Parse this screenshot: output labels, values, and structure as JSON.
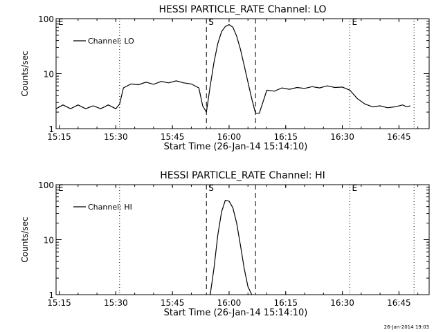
{
  "footer": {
    "timestamp": "26-Jan-2014 19:03"
  },
  "chart_data": [
    {
      "type": "line",
      "title": "HESSI PARTICLE_RATE Channel: LO",
      "xlabel": "Start Time (26-Jan-14 15:14:10)",
      "ylabel": "Counts/sec",
      "x_unit": "HH:MM",
      "xlim": [
        "15:14:10",
        "16:53"
      ],
      "ylim": [
        1,
        100
      ],
      "y_scale": "log",
      "x_ticks": [
        "15:15",
        "15:30",
        "15:45",
        "16:00",
        "16:15",
        "16:30",
        "16:45"
      ],
      "y_ticks": [
        "1",
        "10",
        "100"
      ],
      "legend": {
        "label": "Channel: LO",
        "position": "top-left"
      },
      "markers": [
        {
          "label": "E",
          "time": "15:14:10",
          "style": "edge"
        },
        {
          "label": "",
          "time": "15:31",
          "style": "dotted"
        },
        {
          "label": "S",
          "time": "15:54",
          "style": "dashed"
        },
        {
          "label": "",
          "time": "16:07",
          "style": "dashed"
        },
        {
          "label": "E",
          "time": "16:32",
          "style": "dotted"
        },
        {
          "label": "",
          "time": "16:49",
          "style": "dotted"
        }
      ],
      "series": [
        {
          "name": "Channel: LO",
          "x": [
            "15:14:10",
            "15:16",
            "15:18",
            "15:20",
            "15:22",
            "15:24",
            "15:26",
            "15:28",
            "15:30",
            "15:31",
            "15:32",
            "15:34",
            "15:36",
            "15:38",
            "15:40",
            "15:42",
            "15:44",
            "15:46",
            "15:48",
            "15:50",
            "15:52",
            "15:53",
            "15:54",
            "15:55",
            "15:56",
            "15:57",
            "15:58",
            "15:59",
            "16:00",
            "16:01",
            "16:02",
            "16:03",
            "16:04",
            "16:05",
            "16:06",
            "16:07",
            "16:08",
            "16:10",
            "16:12",
            "16:14",
            "16:16",
            "16:18",
            "16:20",
            "16:22",
            "16:24",
            "16:26",
            "16:28",
            "16:30",
            "16:32",
            "16:34",
            "16:36",
            "16:38",
            "16:40",
            "16:42",
            "16:44",
            "16:46",
            "16:47",
            "16:48"
          ],
          "y": [
            2.3,
            2.7,
            2.3,
            2.7,
            2.3,
            2.6,
            2.3,
            2.7,
            2.3,
            2.8,
            5.5,
            6.5,
            6.3,
            7.0,
            6.4,
            7.2,
            6.8,
            7.4,
            6.8,
            6.5,
            5.5,
            2.6,
            2.0,
            6,
            16,
            35,
            58,
            72,
            78,
            70,
            48,
            28,
            14,
            7,
            3.5,
            1.9,
            1.9,
            5,
            4.8,
            5.5,
            5.2,
            5.6,
            5.4,
            5.8,
            5.5,
            6.0,
            5.6,
            5.7,
            5.0,
            3.5,
            2.8,
            2.5,
            2.6,
            2.4,
            2.5,
            2.7,
            2.5,
            2.6
          ]
        }
      ]
    },
    {
      "type": "line",
      "title": "HESSI PARTICLE_RATE Channel: HI",
      "xlabel": "Start Time (26-Jan-14 15:14:10)",
      "ylabel": "Counts/sec",
      "x_unit": "HH:MM",
      "xlim": [
        "15:14:10",
        "16:53"
      ],
      "ylim": [
        1,
        100
      ],
      "y_scale": "log",
      "x_ticks": [
        "15:15",
        "15:30",
        "15:45",
        "16:00",
        "16:15",
        "16:30",
        "16:45"
      ],
      "y_ticks": [
        "1",
        "10",
        "100"
      ],
      "legend": {
        "label": "Channel: HI",
        "position": "top-left"
      },
      "markers": [
        {
          "label": "E",
          "time": "15:14:10",
          "style": "edge"
        },
        {
          "label": "",
          "time": "15:31",
          "style": "dotted"
        },
        {
          "label": "S",
          "time": "15:54",
          "style": "dashed"
        },
        {
          "label": "",
          "time": "16:07",
          "style": "dashed"
        },
        {
          "label": "E",
          "time": "16:32",
          "style": "dotted"
        },
        {
          "label": "",
          "time": "16:49",
          "style": "dotted"
        }
      ],
      "series": [
        {
          "name": "Channel: HI",
          "x": [
            "15:55",
            "15:56",
            "15:57",
            "15:58",
            "15:59",
            "16:00",
            "16:01",
            "16:02",
            "16:03",
            "16:04",
            "16:05",
            "16:06"
          ],
          "y": [
            1.0,
            3,
            12,
            32,
            52,
            50,
            38,
            20,
            8,
            3,
            1.4,
            1.0
          ]
        }
      ]
    }
  ]
}
